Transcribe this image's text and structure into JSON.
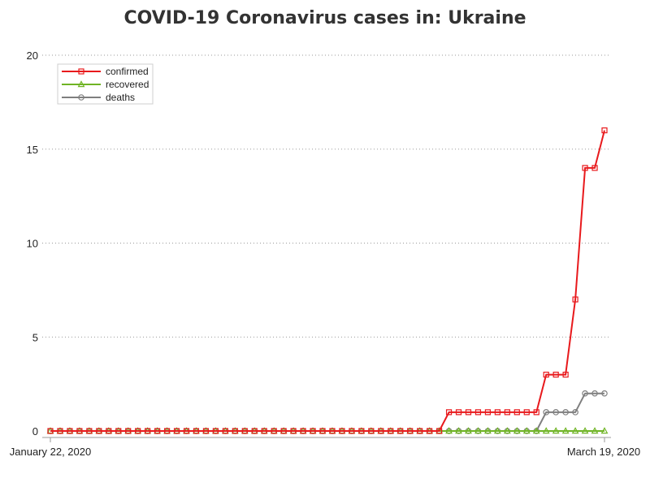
{
  "title": "COVID-19 Coronavirus cases in: Ukraine",
  "chart_data": {
    "type": "line",
    "title": "COVID-19 Coronavirus cases in: Ukraine",
    "xlabel": "",
    "ylabel": "",
    "x_start": "January 22, 2020",
    "x_end": "March 19, 2020",
    "x_tick_labels": [
      "January 22, 2020",
      "March 19, 2020"
    ],
    "ylim": [
      0,
      20
    ],
    "y_ticks": [
      0,
      5,
      10,
      15,
      20
    ],
    "grid": "horizontal dotted",
    "legend_position": "top-left",
    "series": [
      {
        "name": "confirmed",
        "color": "#e8191c",
        "marker": "square",
        "values": [
          0,
          0,
          0,
          0,
          0,
          0,
          0,
          0,
          0,
          0,
          0,
          0,
          0,
          0,
          0,
          0,
          0,
          0,
          0,
          0,
          0,
          0,
          0,
          0,
          0,
          0,
          0,
          0,
          0,
          0,
          0,
          0,
          0,
          0,
          0,
          0,
          0,
          0,
          0,
          0,
          0,
          1,
          1,
          1,
          1,
          1,
          1,
          1,
          1,
          1,
          1,
          3,
          3,
          3,
          7,
          14,
          14,
          16
        ]
      },
      {
        "name": "recovered",
        "color": "#6fb424",
        "marker": "triangle",
        "values": [
          0,
          0,
          0,
          0,
          0,
          0,
          0,
          0,
          0,
          0,
          0,
          0,
          0,
          0,
          0,
          0,
          0,
          0,
          0,
          0,
          0,
          0,
          0,
          0,
          0,
          0,
          0,
          0,
          0,
          0,
          0,
          0,
          0,
          0,
          0,
          0,
          0,
          0,
          0,
          0,
          0,
          0,
          0,
          0,
          0,
          0,
          0,
          0,
          0,
          0,
          0,
          0,
          0,
          0,
          0,
          0,
          0,
          0
        ]
      },
      {
        "name": "deaths",
        "color": "#7f7f7f",
        "marker": "circle",
        "values": [
          0,
          0,
          0,
          0,
          0,
          0,
          0,
          0,
          0,
          0,
          0,
          0,
          0,
          0,
          0,
          0,
          0,
          0,
          0,
          0,
          0,
          0,
          0,
          0,
          0,
          0,
          0,
          0,
          0,
          0,
          0,
          0,
          0,
          0,
          0,
          0,
          0,
          0,
          0,
          0,
          0,
          0,
          0,
          0,
          0,
          0,
          0,
          0,
          0,
          0,
          0,
          1,
          1,
          1,
          1,
          2,
          2,
          2
        ]
      }
    ]
  }
}
